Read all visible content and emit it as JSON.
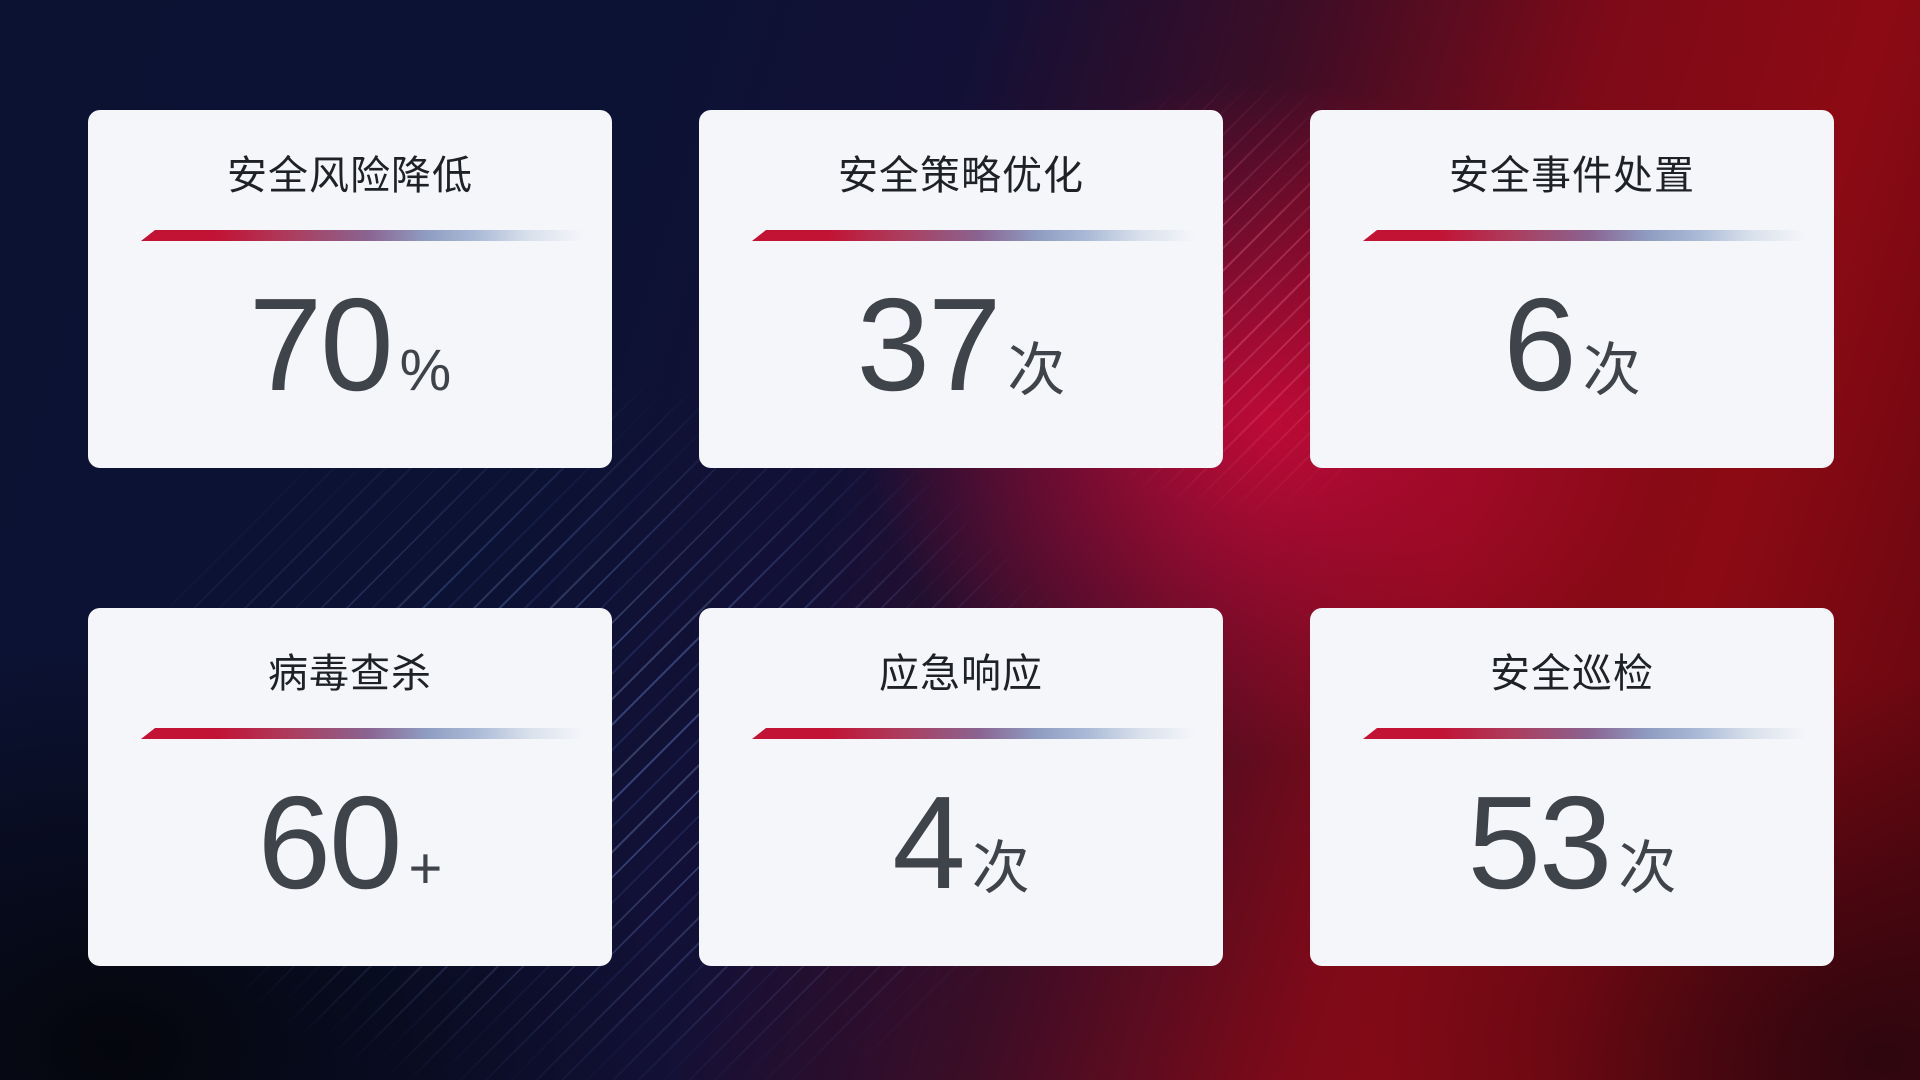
{
  "cards": [
    {
      "title": "安全风险降低",
      "value": "70",
      "unit": "%"
    },
    {
      "title": "安全策略优化",
      "value": "37",
      "unit": "次"
    },
    {
      "title": "安全事件处置",
      "value": "6",
      "unit": "次"
    },
    {
      "title": "病毒查杀",
      "value": "60",
      "unit": "+"
    },
    {
      "title": "应急响应",
      "value": "4",
      "unit": "次"
    },
    {
      "title": "安全巡检",
      "value": "53",
      "unit": "次"
    }
  ],
  "colors": {
    "card_background": "#f5f6fa",
    "title_text": "#1e2126",
    "value_text": "#3f434a",
    "accent_red": "#c21335",
    "accent_line_gradient": [
      "#c21335",
      "#ab3f60",
      "#8a6390",
      "#8f9cc2",
      "#aab9d6",
      "#d9e1ec"
    ],
    "background_navy": "#0c1232",
    "background_black": "#04050a",
    "background_red": "#8c0a14",
    "background_red_hotspot": "#d80a3c",
    "background_maroon": "#2a060e",
    "streak_blue": "#82aaff",
    "streak_pink": "#ff78a0"
  }
}
